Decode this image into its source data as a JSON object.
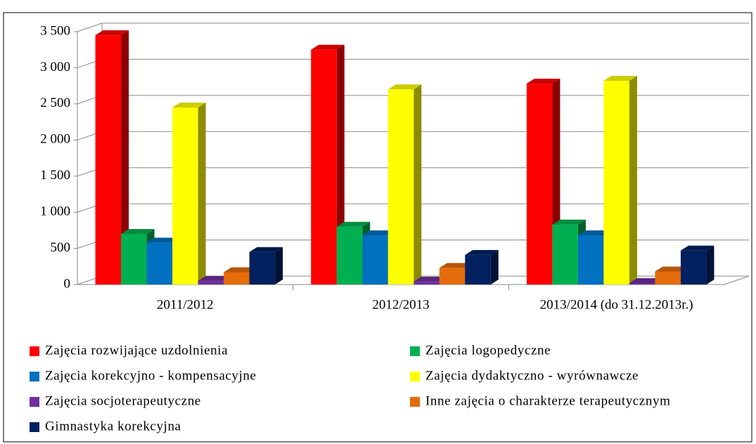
{
  "chart_data": {
    "type": "bar3d",
    "categories": [
      "2011/2012",
      "2012/2013",
      "2013/2014 (do 31.12.2013r.)"
    ],
    "series": [
      {
        "name": "Zajęcia rozwijające uzdolnienia",
        "color": "#ff0000",
        "values": [
          3450,
          3250,
          2780
        ]
      },
      {
        "name": "Zajęcia logopedyczne",
        "color": "#00b050",
        "values": [
          700,
          800,
          830
        ]
      },
      {
        "name": "Zajęcia korekcyjno - kompensacyjne",
        "color": "#0070c0",
        "values": [
          580,
          680,
          680
        ]
      },
      {
        "name": "Zajęcia dydaktyczno - wyrównawcze",
        "color": "#ffff00",
        "values": [
          2450,
          2700,
          2820
        ]
      },
      {
        "name": "Zajęcia socjoterapeutyczne",
        "color": "#7030a0",
        "values": [
          50,
          40,
          20
        ]
      },
      {
        "name": "Inne zajęcia o charakterze terapeutycznym",
        "color": "#e46c0a",
        "values": [
          170,
          230,
          180
        ]
      },
      {
        "name": "Gimnastyka korekcyjna",
        "color": "#002060",
        "values": [
          450,
          410,
          470
        ]
      }
    ],
    "ylim": [
      0,
      3500
    ],
    "yticks": [
      0,
      500,
      {
        "value": 1000,
        "label": "1 000"
      },
      {
        "value": 1500,
        "label": "1 500"
      },
      {
        "value": 2000,
        "label": "2 000"
      },
      {
        "value": 2500,
        "label": "2 500"
      },
      {
        "value": 3000,
        "label": "3 000"
      },
      {
        "value": 3500,
        "label": "3 500"
      }
    ],
    "grid": true,
    "legend": "bottom"
  }
}
